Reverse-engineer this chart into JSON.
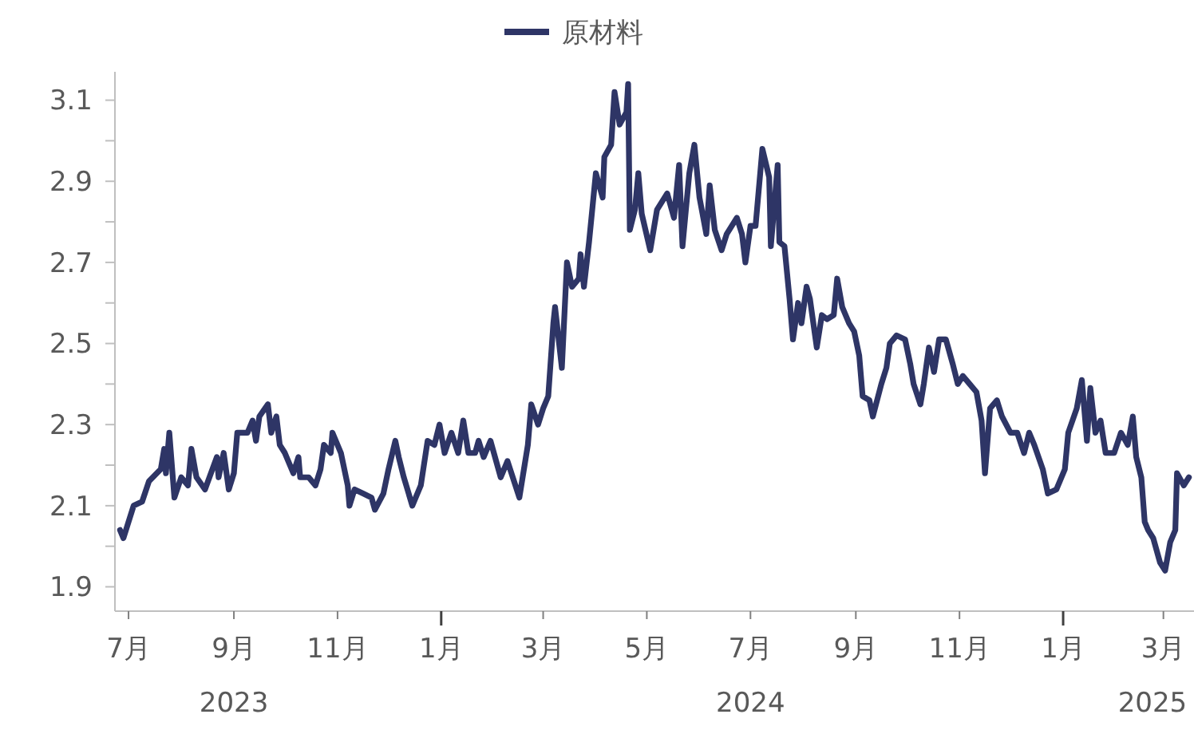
{
  "chart_data": {
    "type": "line",
    "legend": "top",
    "marker": "none",
    "line_style": "solid",
    "grid": false,
    "xlim": [
      "2023-06-23",
      "2025-03-19"
    ],
    "xticks": [
      {
        "value": "2023-07-01",
        "label": "7月"
      },
      {
        "value": "2023-09-01",
        "label": "9月\n2023"
      },
      {
        "value": "2023-11-01",
        "label": "11月"
      },
      {
        "value": "2024-01-01",
        "label": "1月"
      },
      {
        "value": "2024-03-01",
        "label": "3月"
      },
      {
        "value": "2024-05-01",
        "label": "5月"
      },
      {
        "value": "2024-07-01",
        "label": "7月\n2024"
      },
      {
        "value": "2024-09-01",
        "label": "9月"
      },
      {
        "value": "2024-11-01",
        "label": "11月"
      },
      {
        "value": "2025-01-01",
        "label": "1月"
      },
      {
        "value": "2025-03-01",
        "label": "3月\n2025"
      }
    ],
    "ylim": [
      1.84,
      3.17
    ],
    "yticks": [
      1.9,
      {
        "value": 2.0,
        "label": null
      },
      2.1,
      {
        "value": 2.2,
        "label": null
      },
      2.3,
      {
        "value": 2.4,
        "label": null
      },
      2.5,
      {
        "value": 2.6,
        "label": null
      },
      2.7,
      {
        "value": 2.8,
        "label": null
      },
      2.9,
      {
        "value": 3.0,
        "label": null
      },
      3.1
    ],
    "x": [
      "2023-06-26",
      "2023-06-28",
      "2023-07-01",
      "2023-07-04",
      "2023-07-09",
      "2023-07-13",
      "2023-07-20",
      "2023-07-22",
      "2023-07-23",
      "2023-07-25",
      "2023-07-28",
      "2023-08-01",
      "2023-08-05",
      "2023-08-07",
      "2023-08-10",
      "2023-08-15",
      "2023-08-22",
      "2023-08-23",
      "2023-08-26",
      "2023-08-29",
      "2023-09-01",
      "2023-09-03",
      "2023-09-09",
      "2023-09-12",
      "2023-09-14",
      "2023-09-16",
      "2023-09-21",
      "2023-09-23",
      "2023-09-26",
      "2023-09-28",
      "2023-10-01",
      "2023-10-06",
      "2023-10-09",
      "2023-10-10",
      "2023-10-15",
      "2023-10-19",
      "2023-10-22",
      "2023-10-24",
      "2023-10-28",
      "2023-10-29",
      "2023-11-03",
      "2023-11-07",
      "2023-11-08",
      "2023-11-11",
      "2023-11-16",
      "2023-11-21",
      "2023-11-23",
      "2023-11-28",
      "2023-12-01",
      "2023-12-05",
      "2023-12-07",
      "2023-12-10",
      "2023-12-15",
      "2023-12-20",
      "2023-12-24",
      "2023-12-28",
      "2023-12-31",
      "2024-01-03",
      "2024-01-07",
      "2024-01-11",
      "2024-01-14",
      "2024-01-17",
      "2024-01-21",
      "2024-01-23",
      "2024-01-26",
      "2024-01-30",
      "2024-02-05",
      "2024-02-09",
      "2024-02-16",
      "2024-02-21",
      "2024-02-23",
      "2024-02-27",
      "2024-03-01",
      "2024-03-04",
      "2024-03-07",
      "2024-03-08",
      "2024-03-12",
      "2024-03-15",
      "2024-03-18",
      "2024-03-22",
      "2024-03-23",
      "2024-03-25",
      "2024-03-28",
      "2024-04-01",
      "2024-04-05",
      "2024-04-06",
      "2024-04-10",
      "2024-04-12",
      "2024-04-15",
      "2024-04-19",
      "2024-04-20",
      "2024-04-21",
      "2024-04-24",
      "2024-04-26",
      "2024-04-28",
      "2024-05-03",
      "2024-05-07",
      "2024-05-10",
      "2024-05-13",
      "2024-05-17",
      "2024-05-20",
      "2024-05-22",
      "2024-05-26",
      "2024-05-29",
      "2024-06-01",
      "2024-06-05",
      "2024-06-07",
      "2024-06-10",
      "2024-06-14",
      "2024-06-17",
      "2024-06-20",
      "2024-06-23",
      "2024-06-26",
      "2024-06-28",
      "2024-07-01",
      "2024-07-04",
      "2024-07-08",
      "2024-07-12",
      "2024-07-13",
      "2024-07-17",
      "2024-07-18",
      "2024-07-21",
      "2024-07-24",
      "2024-07-26",
      "2024-07-29",
      "2024-07-31",
      "2024-08-03",
      "2024-08-05",
      "2024-08-09",
      "2024-08-12",
      "2024-08-15",
      "2024-08-19",
      "2024-08-21",
      "2024-08-24",
      "2024-08-28",
      "2024-08-31",
      "2024-09-03",
      "2024-09-05",
      "2024-09-09",
      "2024-09-11",
      "2024-09-16",
      "2024-09-19",
      "2024-09-21",
      "2024-09-25",
      "2024-09-30",
      "2024-10-03",
      "2024-10-05",
      "2024-10-09",
      "2024-10-11",
      "2024-10-14",
      "2024-10-17",
      "2024-10-20",
      "2024-10-24",
      "2024-10-28",
      "2024-10-31",
      "2024-11-03",
      "2024-11-07",
      "2024-11-11",
      "2024-11-14",
      "2024-11-16",
      "2024-11-19",
      "2024-11-23",
      "2024-11-26",
      "2024-12-01",
      "2024-12-05",
      "2024-12-09",
      "2024-12-12",
      "2024-12-15",
      "2024-12-20",
      "2024-12-23",
      "2024-12-28",
      "2025-01-02",
      "2025-01-04",
      "2025-01-09",
      "2025-01-12",
      "2025-01-15",
      "2025-01-17",
      "2025-01-20",
      "2025-01-23",
      "2025-01-26",
      "2025-01-31",
      "2025-02-04",
      "2025-02-08",
      "2025-02-11",
      "2025-02-13",
      "2025-02-16",
      "2025-02-18",
      "2025-02-20",
      "2025-02-23",
      "2025-02-27",
      "2025-03-02",
      "2025-03-05",
      "2025-03-08",
      "2025-03-09",
      "2025-03-13",
      "2025-03-16"
    ],
    "series": [
      {
        "name": "原材料",
        "color": "#2e3566",
        "values": [
          2.04,
          2.02,
          2.06,
          2.1,
          2.11,
          2.16,
          2.19,
          2.24,
          2.18,
          2.28,
          2.12,
          2.17,
          2.15,
          2.24,
          2.17,
          2.14,
          2.22,
          2.17,
          2.23,
          2.14,
          2.18,
          2.28,
          2.28,
          2.31,
          2.26,
          2.32,
          2.35,
          2.28,
          2.32,
          2.25,
          2.23,
          2.18,
          2.22,
          2.17,
          2.17,
          2.15,
          2.19,
          2.25,
          2.23,
          2.28,
          2.23,
          2.15,
          2.1,
          2.14,
          2.13,
          2.12,
          2.09,
          2.13,
          2.19,
          2.26,
          2.22,
          2.17,
          2.1,
          2.15,
          2.26,
          2.25,
          2.3,
          2.23,
          2.28,
          2.23,
          2.31,
          2.23,
          2.23,
          2.26,
          2.22,
          2.26,
          2.17,
          2.21,
          2.12,
          2.25,
          2.35,
          2.3,
          2.34,
          2.37,
          2.55,
          2.59,
          2.44,
          2.7,
          2.64,
          2.66,
          2.72,
          2.64,
          2.75,
          2.92,
          2.86,
          2.96,
          2.99,
          3.12,
          3.04,
          3.07,
          3.14,
          2.78,
          2.83,
          2.92,
          2.82,
          2.73,
          2.83,
          2.85,
          2.87,
          2.81,
          2.94,
          2.74,
          2.92,
          2.99,
          2.86,
          2.77,
          2.89,
          2.78,
          2.73,
          2.77,
          2.79,
          2.81,
          2.77,
          2.7,
          2.79,
          2.79,
          2.98,
          2.91,
          2.74,
          2.94,
          2.75,
          2.74,
          2.61,
          2.51,
          2.6,
          2.55,
          2.64,
          2.61,
          2.49,
          2.57,
          2.56,
          2.57,
          2.66,
          2.59,
          2.55,
          2.53,
          2.47,
          2.37,
          2.36,
          2.32,
          2.4,
          2.44,
          2.5,
          2.52,
          2.51,
          2.45,
          2.4,
          2.35,
          2.4,
          2.49,
          2.43,
          2.51,
          2.51,
          2.45,
          2.4,
          2.42,
          2.4,
          2.38,
          2.31,
          2.18,
          2.34,
          2.36,
          2.32,
          2.28,
          2.28,
          2.23,
          2.28,
          2.25,
          2.19,
          2.13,
          2.14,
          2.19,
          2.28,
          2.34,
          2.41,
          2.26,
          2.39,
          2.28,
          2.31,
          2.23,
          2.23,
          2.28,
          2.25,
          2.32,
          2.22,
          2.17,
          2.06,
          2.04,
          2.02,
          1.96,
          1.94,
          2.01,
          2.04,
          2.18,
          2.15,
          2.17
        ]
      }
    ]
  }
}
